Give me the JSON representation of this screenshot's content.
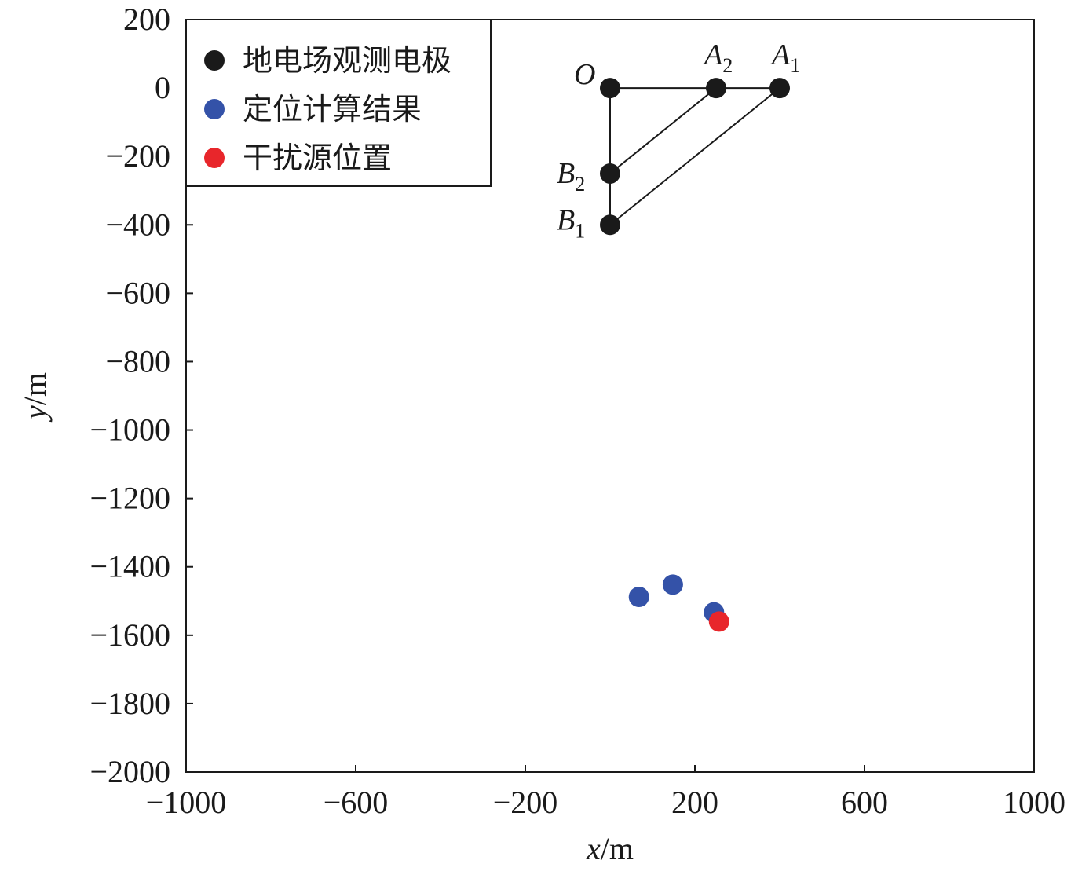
{
  "chart_data": {
    "type": "scatter",
    "title": "",
    "xlabel": {
      "var": "x",
      "unit": "/m"
    },
    "ylabel": {
      "var": "y",
      "unit": "/m"
    },
    "xlim": [
      -1000,
      1000
    ],
    "ylim": [
      -2000,
      200
    ],
    "xticks": [
      -1000,
      -600,
      -200,
      200,
      600,
      1000
    ],
    "yticks": [
      200,
      0,
      -200,
      -400,
      -600,
      -800,
      -1000,
      -1200,
      -1400,
      -1600,
      -1800,
      -2000
    ],
    "grid": false,
    "legend_position": "top-left",
    "series": [
      {
        "name": "地电场观测电极",
        "color": "#1a1a1a",
        "points": [
          {
            "label": "O",
            "sub": "",
            "x": 0,
            "y": 0
          },
          {
            "label": "A",
            "sub": "2",
            "x": 250,
            "y": 0
          },
          {
            "label": "A",
            "sub": "1",
            "x": 400,
            "y": 0
          },
          {
            "label": "B",
            "sub": "2",
            "x": 0,
            "y": -250
          },
          {
            "label": "B",
            "sub": "1",
            "x": 0,
            "y": -400
          }
        ]
      },
      {
        "name": "定位计算结果",
        "color": "#3452a8",
        "points": [
          {
            "x": 68,
            "y": -1488
          },
          {
            "x": 148,
            "y": -1452
          },
          {
            "x": 245,
            "y": -1533
          }
        ]
      },
      {
        "name": "干扰源位置",
        "color": "#e8262b",
        "points": [
          {
            "x": 257,
            "y": -1560
          }
        ]
      }
    ],
    "connections": [
      [
        "O",
        "A1"
      ],
      [
        "O",
        "B1"
      ],
      [
        "A2",
        "B2"
      ],
      [
        "A1",
        "B1"
      ]
    ]
  }
}
